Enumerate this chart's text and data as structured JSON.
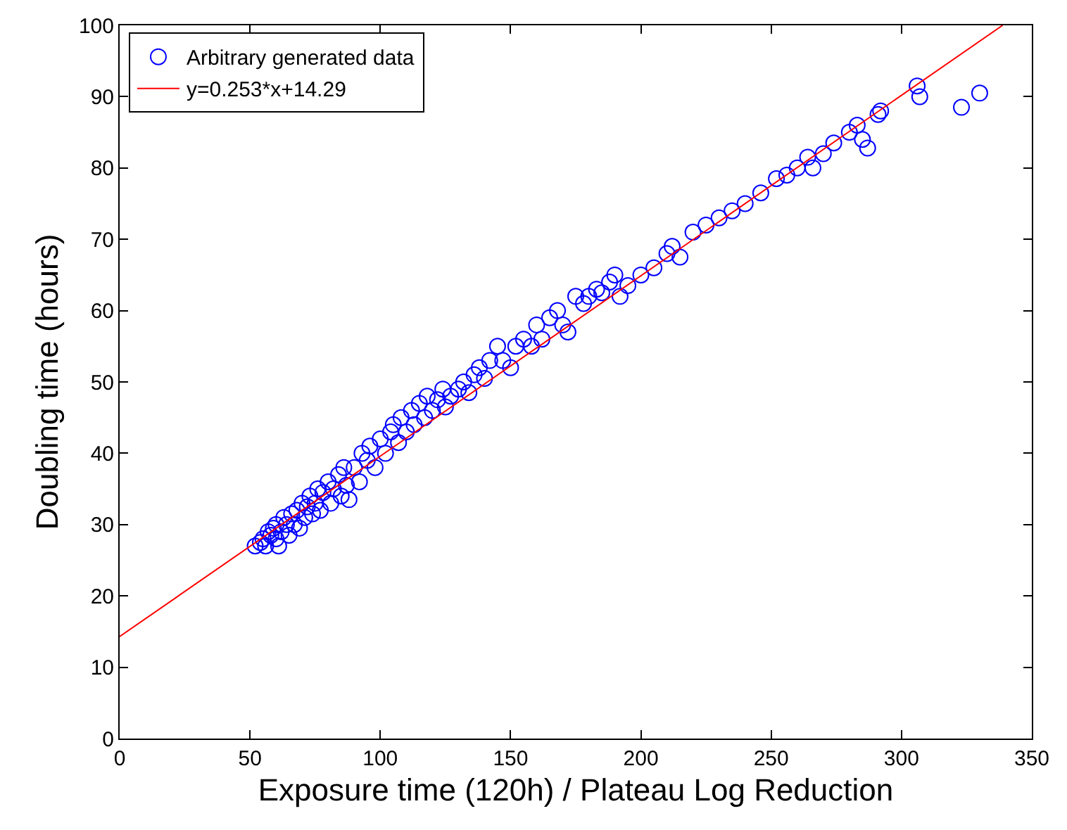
{
  "chart_data": {
    "type": "scatter",
    "xlabel": "Exposure time (120h) / Plateau Log Reduction",
    "ylabel": "Doubling time (hours)",
    "xlim": [
      0,
      350
    ],
    "xticks": [
      0,
      50,
      100,
      150,
      200,
      250,
      300,
      350
    ],
    "ylim": [
      0,
      100
    ],
    "yticks": [
      0,
      10,
      20,
      30,
      40,
      50,
      60,
      70,
      80,
      90,
      100
    ],
    "grid": false,
    "legend": "top left",
    "marker": "circle",
    "series": [
      {
        "name": "Arbitrary generated data",
        "color": "#0000ff",
        "x": [
          52,
          54,
          55,
          56,
          57,
          58,
          59,
          60,
          60,
          61,
          62,
          63,
          64,
          65,
          66,
          67,
          68,
          69,
          70,
          71,
          72,
          73,
          74,
          75,
          76,
          77,
          78,
          80,
          81,
          82,
          84,
          85,
          86,
          87,
          88,
          90,
          92,
          93,
          95,
          96,
          98,
          100,
          102,
          104,
          105,
          107,
          108,
          110,
          112,
          113,
          115,
          117,
          118,
          120,
          122,
          124,
          125,
          127,
          130,
          132,
          134,
          136,
          138,
          140,
          142,
          145,
          147,
          150,
          152,
          155,
          158,
          160,
          162,
          165,
          168,
          170,
          172,
          175,
          178,
          180,
          183,
          185,
          188,
          190,
          192,
          195,
          200,
          205,
          210,
          212,
          215,
          220,
          225,
          230,
          235,
          240,
          246,
          252,
          256,
          260,
          264,
          266,
          270,
          274,
          280,
          283,
          285,
          287,
          292,
          291,
          306,
          307,
          323,
          330
        ],
        "values": [
          27,
          27.5,
          28,
          27,
          29,
          28.5,
          29.5,
          28,
          30,
          27,
          29,
          31,
          30,
          28.5,
          31.5,
          30,
          32,
          29.5,
          33,
          31,
          32.5,
          34,
          31.5,
          33,
          35,
          32,
          34.5,
          36,
          33,
          35,
          37,
          34,
          38,
          35.5,
          33.5,
          38,
          36,
          40,
          39,
          41,
          38,
          42,
          40,
          43,
          44,
          41.5,
          45,
          43,
          46,
          44,
          47,
          45,
          48,
          46,
          47.5,
          49,
          46.5,
          48,
          49,
          50,
          48.5,
          51,
          52,
          50.5,
          53,
          55,
          53,
          52,
          55,
          56,
          55,
          58,
          56,
          59,
          60,
          58,
          57,
          62,
          61,
          62,
          63,
          62.5,
          64,
          65,
          62,
          63.5,
          65,
          66,
          68,
          69,
          67.5,
          71,
          72,
          73,
          74,
          75,
          76.5,
          78.5,
          79,
          80,
          81.5,
          80,
          82,
          83.5,
          85,
          86,
          84,
          82.8,
          88,
          87.5,
          91.5,
          90,
          88.5,
          90.5
        ]
      },
      {
        "name": "y=0.253*x+14.29",
        "color": "#ff0000",
        "type": "line",
        "marker": "none",
        "x": [
          0,
          338.8
        ],
        "values": [
          14.3,
          100
        ]
      }
    ]
  }
}
